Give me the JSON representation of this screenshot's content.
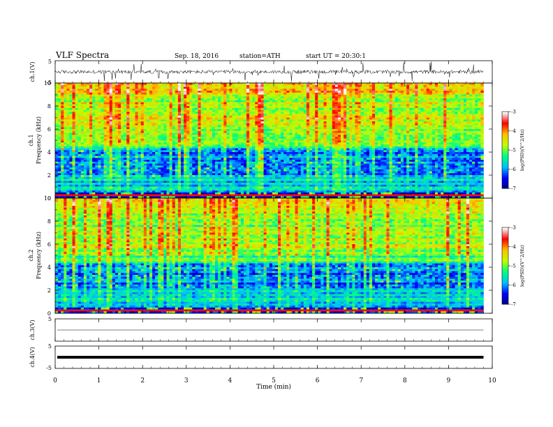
{
  "header": {
    "title": "VLF Spectra",
    "date": "Sep. 18, 2016",
    "station": "station=ATH",
    "start": "start UT = 20:30:1"
  },
  "chart_data": [
    {
      "type": "line",
      "panel": "ch1-waveform",
      "ylabel": "ch.1(V)",
      "ylim": [
        -5,
        5
      ],
      "yticks": [
        "5",
        "-5"
      ],
      "baseline_v": 0,
      "trace_color": "#000000"
    },
    {
      "type": "heatmap",
      "panel": "ch1-spectrogram",
      "ylabel_top": "ch.1",
      "ylabel": "Frequency (kHz)",
      "ylim": [
        0,
        10
      ],
      "yticks": [
        "0",
        "2",
        "4",
        "6",
        "8",
        "10"
      ],
      "colorbar": {
        "label": "log(PSD)(V^2/Hz)",
        "range": [
          -7,
          -3
        ],
        "ticks": [
          "-3",
          "-4",
          "-5",
          "-6",
          "-7"
        ],
        "colors": [
          "#00007f",
          "#0000ff",
          "#00bfff",
          "#00ff7f",
          "#bfff00",
          "#ffbf00",
          "#ff0000",
          "#ffffff"
        ]
      },
      "features": {
        "band_top_khz": 4.3,
        "low_band_khz": 1.9,
        "hf_red_above_khz": 7.5
      }
    },
    {
      "type": "heatmap",
      "panel": "ch2-spectrogram",
      "ylabel_top": "ch.2",
      "ylabel": "Frequency (kHz)",
      "ylim": [
        0,
        10
      ],
      "yticks": [
        "0",
        "2",
        "4",
        "6",
        "8",
        "10"
      ],
      "colorbar": {
        "label": "log(PSD)(V^2/Hz)",
        "range": [
          -7,
          -3
        ],
        "ticks": [
          "-3",
          "-4",
          "-5",
          "-6",
          "-7"
        ],
        "colors": [
          "#00007f",
          "#0000ff",
          "#00bfff",
          "#00ff7f",
          "#bfff00",
          "#ffbf00",
          "#ff0000",
          "#ffffff"
        ]
      },
      "features": {
        "band_top_khz": 4.4,
        "low_band_khz": 2.2,
        "hf_red_above_khz": 7.5
      }
    },
    {
      "type": "line",
      "panel": "ch3-waveform",
      "ylabel": "ch.3(V)",
      "ylim": [
        -5,
        5
      ],
      "yticks": [
        "5"
      ],
      "baseline_v": 0,
      "trace_color": "#000000"
    },
    {
      "type": "line",
      "panel": "ch4-waveform",
      "ylabel": "ch.4(V)",
      "ylim": [
        -5,
        5
      ],
      "yticks": [
        "5",
        "-5"
      ],
      "baseline_v": 0,
      "trace_color": "#000000"
    }
  ],
  "x_axis": {
    "label": "Time (min)",
    "xlim": [
      0,
      10
    ],
    "ticks": [
      "0",
      "1",
      "2",
      "3",
      "4",
      "5",
      "6",
      "7",
      "8",
      "9",
      "10"
    ],
    "data_end_min": 9.8
  }
}
